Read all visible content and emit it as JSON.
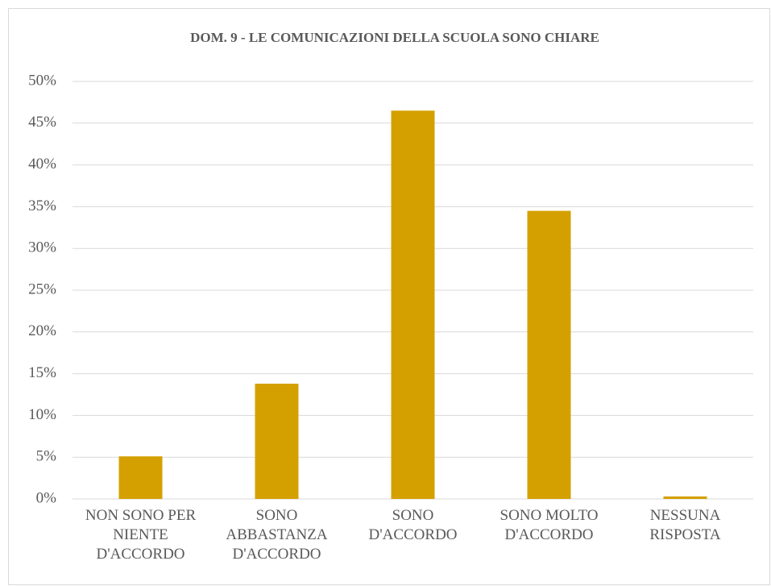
{
  "chart_data": {
    "type": "bar",
    "title": "DOM. 9 - LE COMUNICAZIONI DELLA SCUOLA SONO CHIARE",
    "categories": [
      "NON SONO PER NIENTE D'ACCORDO",
      "SONO ABBASTANZA D'ACCORDO",
      "SONO D'ACCORDO",
      "SONO MOLTO D'ACCORDO",
      "NESSUNA RISPOSTA"
    ],
    "values": [
      5.1,
      13.8,
      46.5,
      34.5,
      0.3
    ],
    "color": "#d4a000",
    "ylim": [
      0,
      50
    ],
    "yticks": [
      {
        "value": 0,
        "label": "0%"
      },
      {
        "value": 5,
        "label": "5%"
      },
      {
        "value": 10,
        "label": "10%"
      },
      {
        "value": 15,
        "label": "15%"
      },
      {
        "value": 20,
        "label": "20%"
      },
      {
        "value": 25,
        "label": "25%"
      },
      {
        "value": 30,
        "label": "30%"
      },
      {
        "value": 35,
        "label": "35%"
      },
      {
        "value": 40,
        "label": "40%"
      },
      {
        "value": 45,
        "label": "45%"
      },
      {
        "value": 50,
        "label": "50%"
      }
    ],
    "grid": true
  }
}
